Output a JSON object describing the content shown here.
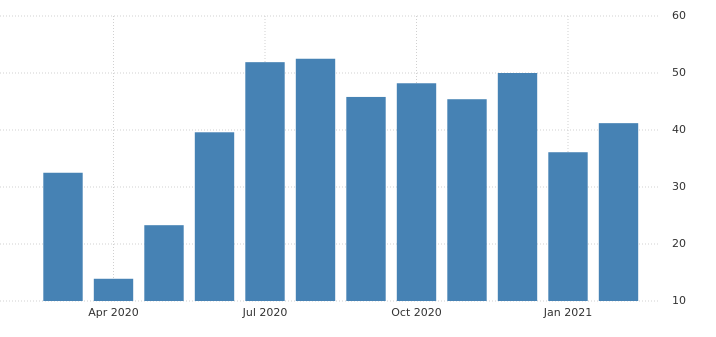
{
  "chart_data": {
    "type": "bar",
    "categories": [
      null,
      "Apr 2020",
      null,
      null,
      "Jul 2020",
      null,
      null,
      "Oct 2020",
      null,
      null,
      "Jan 2021",
      null
    ],
    "values": [
      32.5,
      13.9,
      23.3,
      39.6,
      51.9,
      52.5,
      45.8,
      48.2,
      45.4,
      50.0,
      36.1,
      41.2
    ],
    "color": "#4682b4",
    "ylim": [
      10,
      60
    ],
    "yticks": [
      10,
      20,
      30,
      40,
      50,
      60
    ],
    "grid": true
  }
}
